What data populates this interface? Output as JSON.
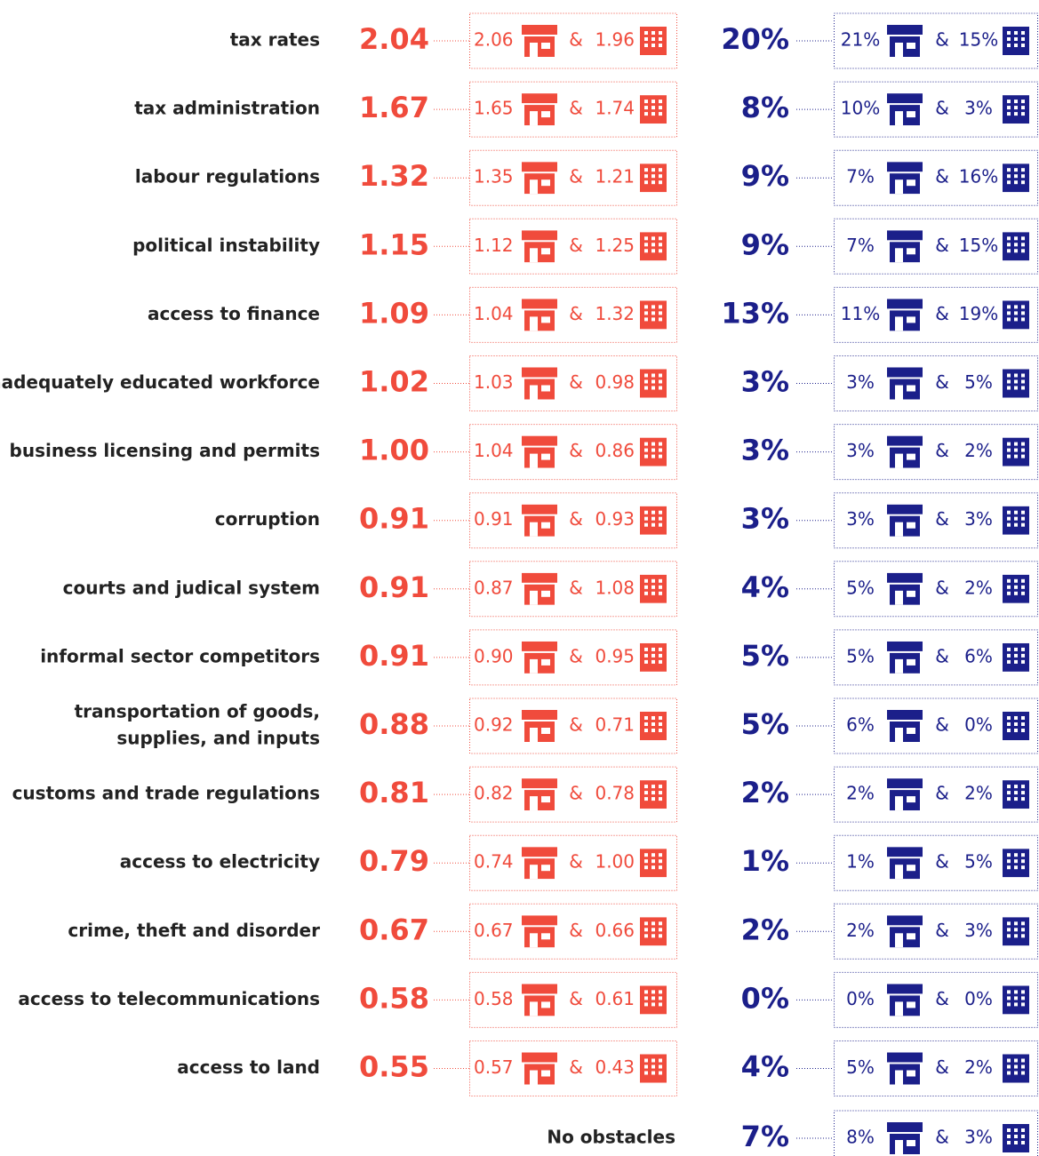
{
  "rows": [
    {
      "label": [
        "tax rates"
      ],
      "score": "2.04",
      "small": "2.06",
      "large": "1.96",
      "pct": "20%",
      "pct_small": "21%",
      "pct_large": "15%"
    },
    {
      "label": [
        "tax administration"
      ],
      "score": "1.67",
      "small": "1.65",
      "large": "1.74",
      "pct": "8%",
      "pct_small": "10%",
      "pct_large": "3%"
    },
    {
      "label": [
        "labour regulations"
      ],
      "score": "1.32",
      "small": "1.35",
      "large": "1.21",
      "pct": "9%",
      "pct_small": "7%",
      "pct_large": "16%"
    },
    {
      "label": [
        "political instability"
      ],
      "score": "1.15",
      "small": "1.12",
      "large": "1.25",
      "pct": "9%",
      "pct_small": "7%",
      "pct_large": "15%"
    },
    {
      "label": [
        "access to finance"
      ],
      "score": "1.09",
      "small": "1.04",
      "large": "1.32",
      "pct": "13%",
      "pct_small": "11%",
      "pct_large": "19%"
    },
    {
      "label": [
        "inadequately educated workforce"
      ],
      "score": "1.02",
      "small": "1.03",
      "large": "0.98",
      "pct": "3%",
      "pct_small": "3%",
      "pct_large": "5%"
    },
    {
      "label": [
        "business licensing and permits"
      ],
      "score": "1.00",
      "small": "1.04",
      "large": "0.86",
      "pct": "3%",
      "pct_small": "3%",
      "pct_large": "2%"
    },
    {
      "label": [
        "corruption"
      ],
      "score": "0.91",
      "small": "0.91",
      "large": "0.93",
      "pct": "3%",
      "pct_small": "3%",
      "pct_large": "3%"
    },
    {
      "label": [
        "courts and judical system"
      ],
      "score": "0.91",
      "small": "0.87",
      "large": "1.08",
      "pct": "4%",
      "pct_small": "5%",
      "pct_large": "2%"
    },
    {
      "label": [
        "informal sector competitors"
      ],
      "score": "0.91",
      "small": "0.90",
      "large": "0.95",
      "pct": "5%",
      "pct_small": "5%",
      "pct_large": "6%"
    },
    {
      "label": [
        "transportation of goods,",
        "supplies, and inputs"
      ],
      "score": "0.88",
      "small": "0.92",
      "large": "0.71",
      "pct": "5%",
      "pct_small": "6%",
      "pct_large": "0%"
    },
    {
      "label": [
        "customs and trade regulations"
      ],
      "score": "0.81",
      "small": "0.82",
      "large": "0.78",
      "pct": "2%",
      "pct_small": "2%",
      "pct_large": "2%"
    },
    {
      "label": [
        "access to electricity"
      ],
      "score": "0.79",
      "small": "0.74",
      "large": "1.00",
      "pct": "1%",
      "pct_small": "1%",
      "pct_large": "5%"
    },
    {
      "label": [
        "crime, theft and disorder"
      ],
      "score": "0.67",
      "small": "0.67",
      "large": "0.66",
      "pct": "2%",
      "pct_small": "2%",
      "pct_large": "3%"
    },
    {
      "label": [
        "access to telecommunications"
      ],
      "score": "0.58",
      "small": "0.58",
      "large": "0.61",
      "pct": "0%",
      "pct_small": "0%",
      "pct_large": "0%"
    },
    {
      "label": [
        "access to land"
      ],
      "score": "0.55",
      "small": "0.57",
      "large": "0.43",
      "pct": "4%",
      "pct_small": "5%",
      "pct_large": "2%"
    }
  ],
  "no_obstacles": {
    "label": "No obstacles",
    "pct": "7%",
    "pct_small": "8%",
    "pct_large": "3%"
  },
  "separator": "&"
}
